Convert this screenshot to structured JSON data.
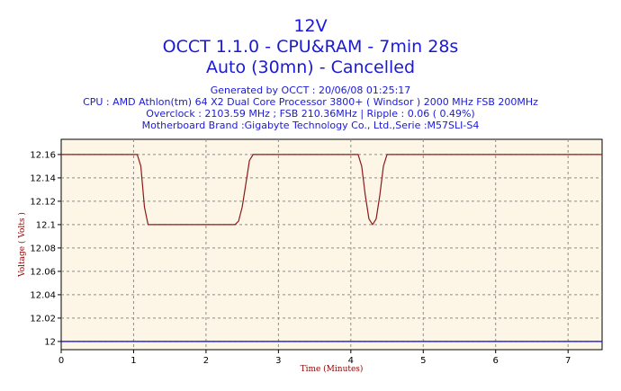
{
  "header": {
    "lines": [
      "12V",
      "OCCT 1.1.0 - CPU&RAM - 7min 28s",
      "Auto (30mn) - Cancelled"
    ],
    "info": [
      "Generated by OCCT : 20/06/08 01:25:17",
      "CPU : AMD Athlon(tm) 64 X2 Dual Core Processor 3800+ ( Windsor ) 2000 MHz FSB 200MHz",
      "Overclock : 2103.59 MHz ; FSB 210.36MHz | Ripple : 0.06 ( 0.49%)",
      "Motherboard Brand :Gigabyte Technology Co., Ltd.,Serie :M57SLI-S4"
    ]
  },
  "chart_data": {
    "type": "line",
    "xlabel": "Time (Minutes)",
    "ylabel": "Voltage ( Volts )",
    "xlim": [
      0,
      7.47
    ],
    "ylim": [
      11.993,
      12.173
    ],
    "xticks": [
      "0",
      "1",
      "2",
      "3",
      "4",
      "5",
      "6",
      "7"
    ],
    "yticks": [
      "12",
      "12.02",
      "12.04",
      "12.06",
      "12.08",
      "12.1",
      "12.12",
      "12.14",
      "12.16"
    ],
    "grid": true,
    "colors": {
      "series": "#8b1a1a",
      "reference": "#0000ff",
      "background": "#fdf6e6",
      "grid": "#8c8c8c"
    },
    "series": [
      {
        "x": [
          0,
          1.05,
          1.1,
          1.15,
          1.2,
          1.25,
          2.4,
          2.45,
          2.5,
          2.55,
          2.6,
          2.65,
          4.1,
          4.15,
          4.2,
          4.25,
          4.3,
          4.35,
          4.4,
          4.45,
          4.5,
          7.47
        ],
        "y": [
          12.16,
          12.16,
          12.15,
          12.115,
          12.1,
          12.1,
          12.1,
          12.103,
          12.115,
          12.135,
          12.155,
          12.16,
          12.16,
          12.15,
          12.125,
          12.105,
          12.1,
          12.105,
          12.125,
          12.15,
          12.16,
          12.16
        ]
      },
      {
        "x": [
          0,
          7.47
        ],
        "y": [
          12,
          12
        ]
      }
    ]
  }
}
